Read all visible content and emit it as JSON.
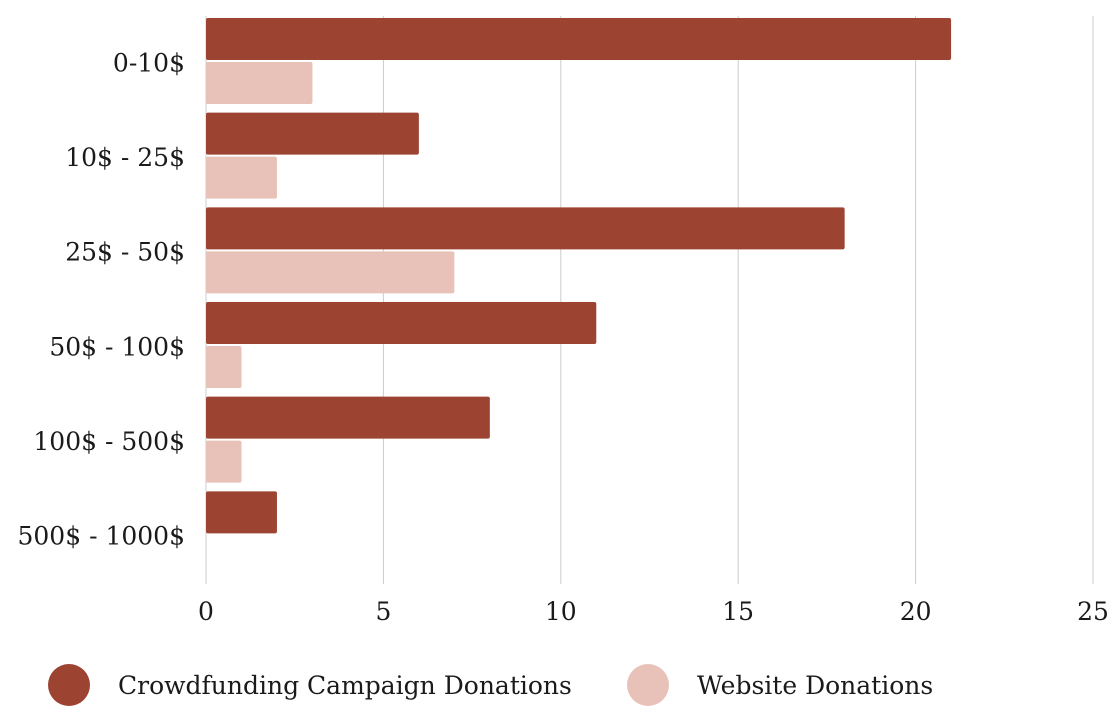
{
  "chart_data": {
    "type": "bar",
    "orientation": "horizontal",
    "categories": [
      "0-10$",
      "10$ - 25$",
      "25$ - 50$",
      "50$ - 100$",
      "100$ - 500$",
      "500$ - 1000$"
    ],
    "series": [
      {
        "name": "Crowdfunding Campaign Donations",
        "color": "#9c4331",
        "values": [
          21,
          6,
          18,
          11,
          8,
          2
        ]
      },
      {
        "name": "Website Donations",
        "color": "#e8c2b8",
        "values": [
          3,
          2,
          7,
          1,
          1,
          0
        ]
      }
    ],
    "xlim": [
      0,
      25
    ],
    "xticks": [
      "0",
      "5",
      "10",
      "15",
      "20",
      "25"
    ],
    "grid": true,
    "legend_position": "bottom"
  }
}
